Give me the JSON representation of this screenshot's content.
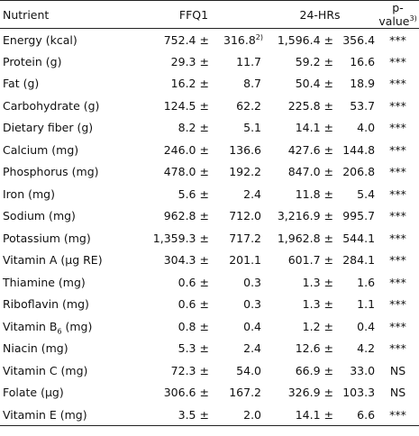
{
  "header": {
    "nutrient": "Nutrient",
    "ffq": "FFQ1",
    "hrs": "24-HRs",
    "pvalue": "p-value",
    "pvalue_note": "3)"
  },
  "pm": "±",
  "footnote_sd": "2)",
  "rows": [
    {
      "name": "Energy (kcal)",
      "ffq_mean": "752.4",
      "ffq_sd": "316.8",
      "hrs_mean": "1,596.4",
      "hrs_sd": "356.4",
      "p": "***"
    },
    {
      "name": "Protein (g)",
      "ffq_mean": "29.3",
      "ffq_sd": "11.7",
      "hrs_mean": "59.2",
      "hrs_sd": "16.6",
      "p": "***"
    },
    {
      "name": "Fat (g)",
      "ffq_mean": "16.2",
      "ffq_sd": "8.7",
      "hrs_mean": "50.4",
      "hrs_sd": "18.9",
      "p": "***"
    },
    {
      "name": "Carbohydrate (g)",
      "ffq_mean": "124.5",
      "ffq_sd": "62.2",
      "hrs_mean": "225.8",
      "hrs_sd": "53.7",
      "p": "***"
    },
    {
      "name": "Dietary fiber (g)",
      "ffq_mean": "8.2",
      "ffq_sd": "5.1",
      "hrs_mean": "14.1",
      "hrs_sd": "4.0",
      "p": "***"
    },
    {
      "name": "Calcium (mg)",
      "ffq_mean": "246.0",
      "ffq_sd": "136.6",
      "hrs_mean": "427.6",
      "hrs_sd": "144.8",
      "p": "***"
    },
    {
      "name": "Phosphorus (mg)",
      "ffq_mean": "478.0",
      "ffq_sd": "192.2",
      "hrs_mean": "847.0",
      "hrs_sd": "206.8",
      "p": "***"
    },
    {
      "name": "Iron (mg)",
      "ffq_mean": "5.6",
      "ffq_sd": "2.4",
      "hrs_mean": "11.8",
      "hrs_sd": "5.4",
      "p": "***"
    },
    {
      "name": "Sodium (mg)",
      "ffq_mean": "962.8",
      "ffq_sd": "712.0",
      "hrs_mean": "3,216.9",
      "hrs_sd": "995.7",
      "p": "***"
    },
    {
      "name": "Potassium (mg)",
      "ffq_mean": "1,359.3",
      "ffq_sd": "717.2",
      "hrs_mean": "1,962.8",
      "hrs_sd": "544.1",
      "p": "***"
    },
    {
      "name": "Vitamin A (μg RE)",
      "ffq_mean": "304.3",
      "ffq_sd": "201.1",
      "hrs_mean": "601.7",
      "hrs_sd": "284.1",
      "p": "***"
    },
    {
      "name": "Thiamine (mg)",
      "ffq_mean": "0.6",
      "ffq_sd": "0.3",
      "hrs_mean": "1.3",
      "hrs_sd": "1.6",
      "p": "***"
    },
    {
      "name": "Riboflavin (mg)",
      "ffq_mean": "0.6",
      "ffq_sd": "0.3",
      "hrs_mean": "1.3",
      "hrs_sd": "1.1",
      "p": "***"
    },
    {
      "name": "Vitamin B",
      "name_sub": "6",
      "name_suffix": " (mg)",
      "ffq_mean": "0.8",
      "ffq_sd": "0.4",
      "hrs_mean": "1.2",
      "hrs_sd": "0.4",
      "p": "***"
    },
    {
      "name": "Niacin (mg)",
      "ffq_mean": "5.3",
      "ffq_sd": "2.4",
      "hrs_mean": "12.6",
      "hrs_sd": "4.2",
      "p": "***"
    },
    {
      "name": "Vitamin C (mg)",
      "ffq_mean": "72.3",
      "ffq_sd": "54.0",
      "hrs_mean": "66.9",
      "hrs_sd": "33.0",
      "p": "NS"
    },
    {
      "name": "Folate (μg)",
      "ffq_mean": "306.6",
      "ffq_sd": "167.2",
      "hrs_mean": "326.9",
      "hrs_sd": "103.3",
      "p": "NS"
    },
    {
      "name": "Vitamin E (mg)",
      "ffq_mean": "3.5",
      "ffq_sd": "2.0",
      "hrs_mean": "14.1",
      "hrs_sd": "6.6",
      "p": "***"
    }
  ]
}
